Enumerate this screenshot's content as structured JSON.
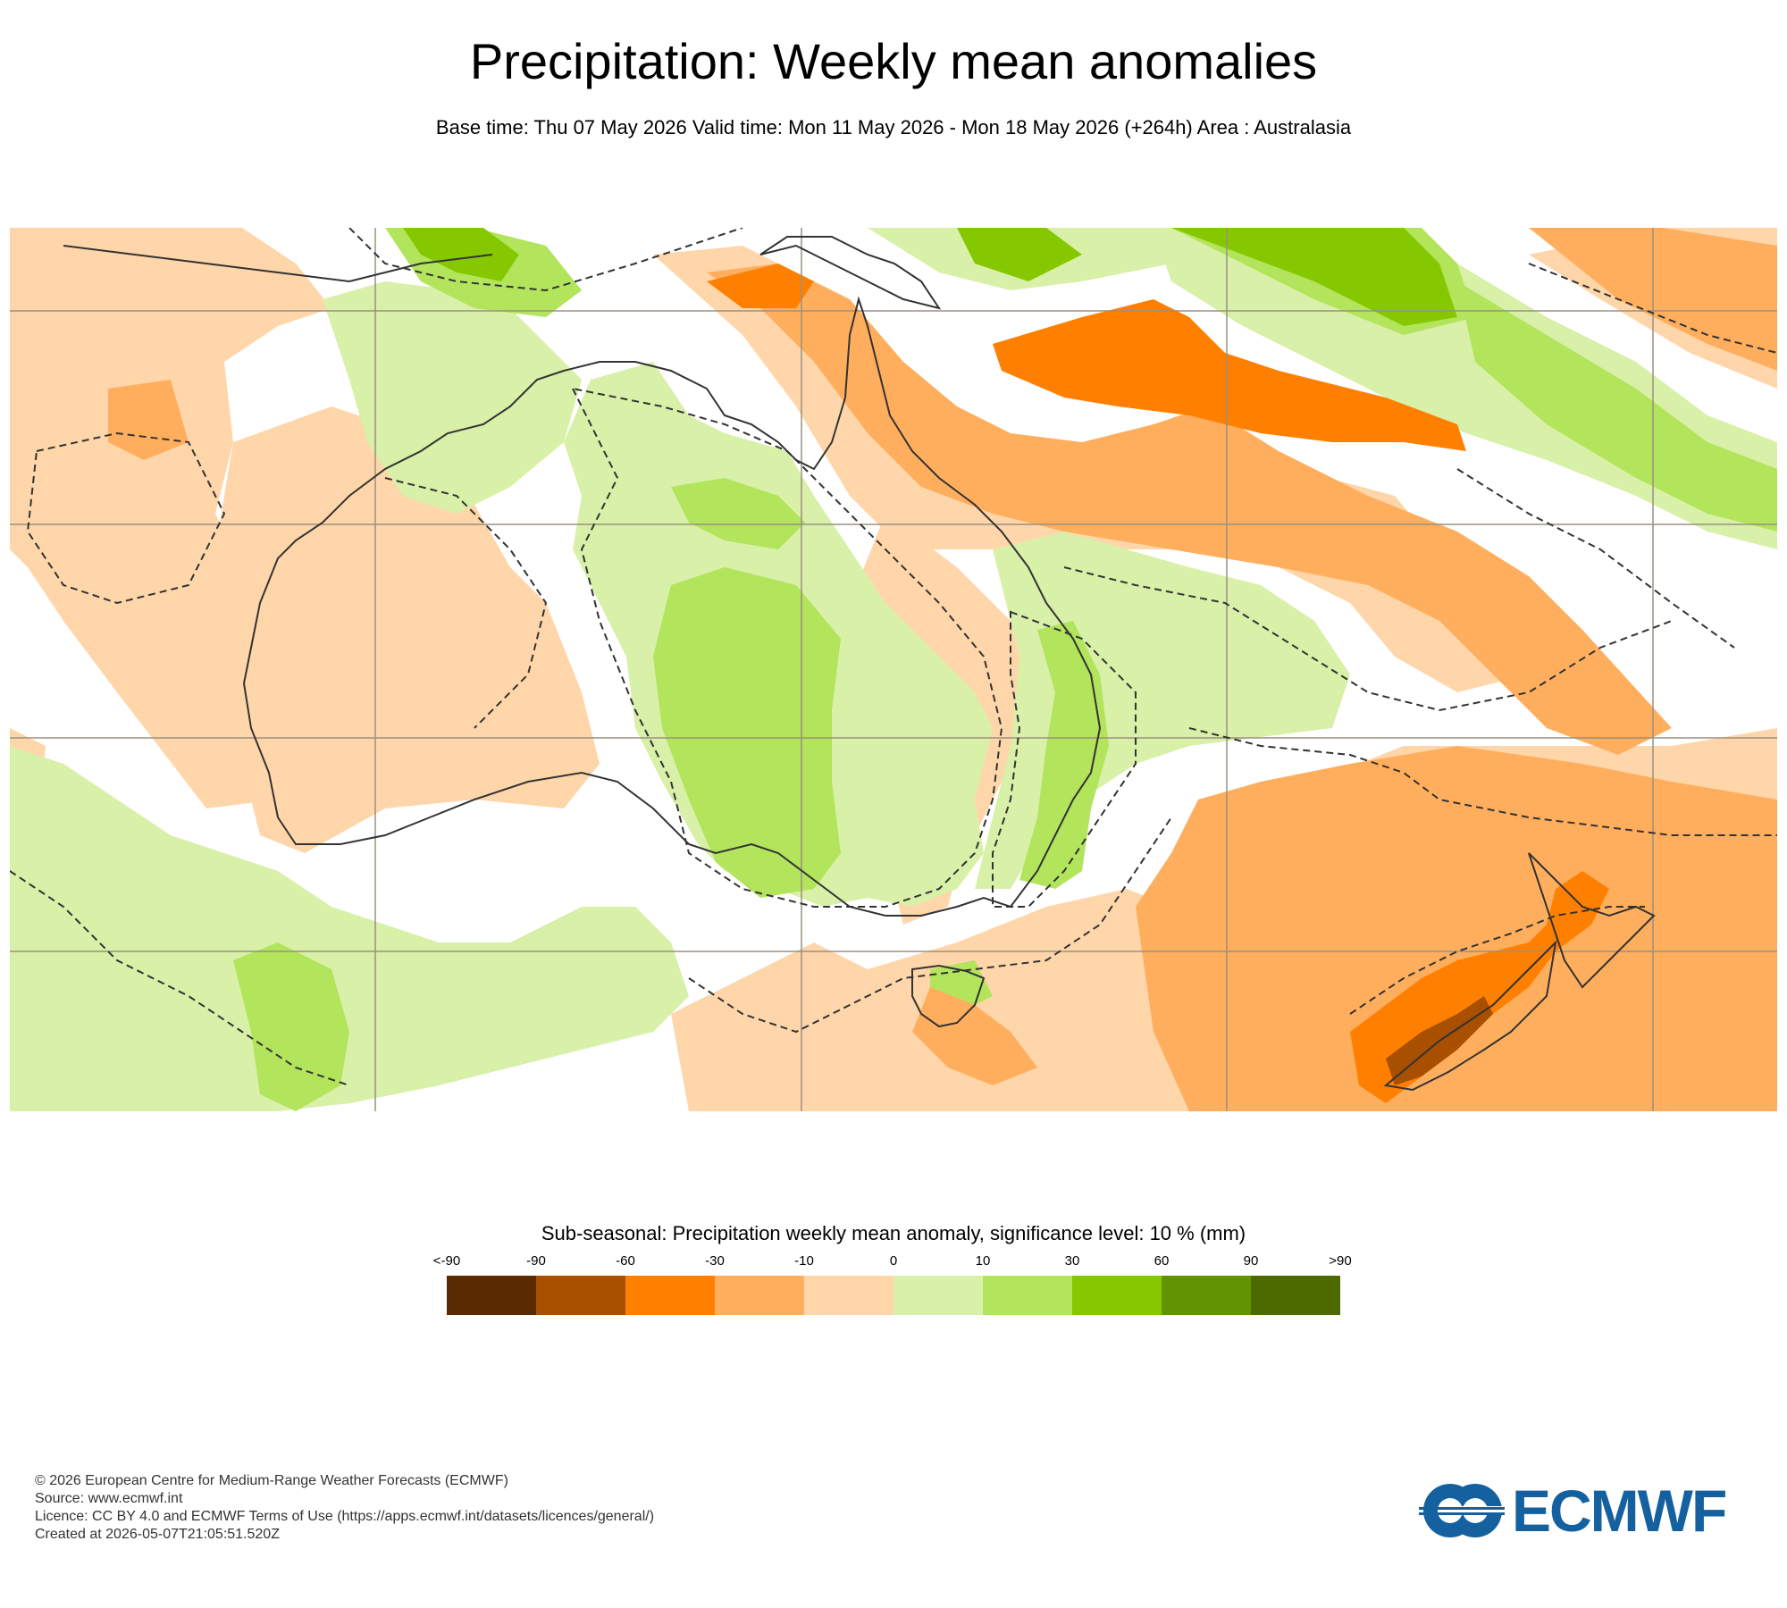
{
  "header": {
    "title": "Precipitation: Weekly mean anomalies",
    "subtitle": "Base time: Thu 07 May 2026 Valid time: Mon 11 May 2026 - Mon 18 May 2026 (+264h) Area : Australasia"
  },
  "legend": {
    "title": "Sub-seasonal: Precipitation weekly mean anomaly, significance level: 10 % (mm)",
    "labels": [
      "<-90",
      "-90",
      "-60",
      "-30",
      "-10",
      "0",
      "10",
      "30",
      "60",
      "90",
      ">90"
    ],
    "colors": [
      "#5a2a00",
      "#a94f00",
      "#ff7f00",
      "#ffae5d",
      "#ffd6aa",
      "#d8f0a8",
      "#b2e45c",
      "#86c800",
      "#629300",
      "#4c6a00"
    ]
  },
  "map_colors": {
    "ocean_neutral": "#ffffff",
    "very_light_orange": "#ffd6aa",
    "light_orange": "#ffae5d",
    "orange": "#ff7f00",
    "dark_orange": "#a94f00",
    "very_light_green": "#d8f0a8",
    "light_green": "#b2e45c",
    "green": "#86c800",
    "coastline": "#333333",
    "gridline": "#9a9080"
  },
  "footer": {
    "copyright": "© 2026 European Centre for Medium-Range Weather Forecasts (ECMWF)",
    "source": "Source: www.ecmwf.int",
    "licence": "Licence: CC BY 4.0 and ECMWF Terms of Use (https://apps.ecmwf.int/datasets/licences/general/)",
    "created": "Created at 2026-05-07T21:05:51.520Z"
  },
  "logo": {
    "text": "ECMWF",
    "color": "#1561a0"
  }
}
